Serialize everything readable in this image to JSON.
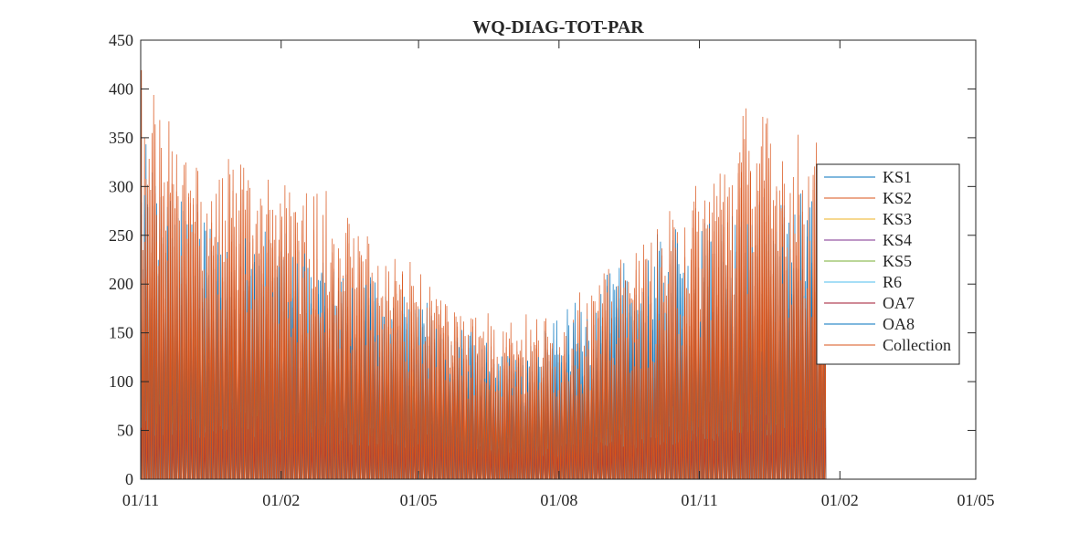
{
  "chart_data": {
    "type": "line",
    "title": "WQ-DIAG-TOT-PAR",
    "xlabel": "",
    "ylabel": "",
    "xlim": [
      "2011-11-01",
      "2013-05-01"
    ],
    "ylim": [
      0,
      450
    ],
    "x_ticks": [
      "01/11",
      "01/02",
      "01/05",
      "01/08",
      "01/11",
      "01/02",
      "01/05"
    ],
    "x_tick_dates": [
      "2011-11-01",
      "2012-02-01",
      "2012-05-01",
      "2012-08-01",
      "2012-11-01",
      "2013-02-01",
      "2013-05-01"
    ],
    "y_ticks": [
      0,
      50,
      100,
      150,
      200,
      250,
      300,
      350,
      400,
      450
    ],
    "grid": false,
    "legend_position": "right",
    "series": [
      {
        "name": "KS1",
        "color": "#0072BD",
        "data_end": "2013-01-22",
        "envelope": [
          [
            "2011-11-01",
            350
          ],
          [
            "2011-12-01",
            290
          ],
          [
            "2012-01-01",
            270
          ],
          [
            "2012-02-01",
            255
          ],
          [
            "2012-03-01",
            220
          ],
          [
            "2012-04-01",
            195
          ],
          [
            "2012-05-01",
            170
          ],
          [
            "2012-06-01",
            140
          ],
          [
            "2012-07-01",
            130
          ],
          [
            "2012-08-01",
            135
          ],
          [
            "2012-09-01",
            175
          ],
          [
            "2012-10-01",
            200
          ],
          [
            "2012-11-01",
            245
          ],
          [
            "2012-12-01",
            290
          ],
          [
            "2013-01-01",
            305
          ],
          [
            "2013-01-22",
            280
          ]
        ]
      },
      {
        "name": "KS2",
        "color": "#D95319",
        "data_end": "2013-01-22",
        "envelope": [
          [
            "2011-11-01",
            390
          ],
          [
            "2011-12-01",
            330
          ],
          [
            "2012-01-01",
            315
          ],
          [
            "2012-02-01",
            300
          ],
          [
            "2012-03-01",
            260
          ],
          [
            "2012-04-01",
            225
          ],
          [
            "2012-05-01",
            205
          ],
          [
            "2012-06-01",
            170
          ],
          [
            "2012-07-01",
            150
          ],
          [
            "2012-08-01",
            160
          ],
          [
            "2012-09-01",
            210
          ],
          [
            "2012-10-01",
            240
          ],
          [
            "2012-11-01",
            290
          ],
          [
            "2012-12-01",
            345
          ],
          [
            "2013-01-01",
            340
          ],
          [
            "2013-01-22",
            330
          ]
        ]
      },
      {
        "name": "KS3",
        "color": "#EDB120",
        "data_end": "2013-01-22",
        "envelope": [
          [
            "2011-11-01",
            180
          ],
          [
            "2012-02-01",
            150
          ],
          [
            "2012-05-01",
            110
          ],
          [
            "2012-08-01",
            90
          ],
          [
            "2012-11-01",
            150
          ],
          [
            "2013-01-22",
            170
          ]
        ]
      },
      {
        "name": "KS4",
        "color": "#7E2F8E",
        "data_end": "2013-01-22",
        "envelope": [
          [
            "2011-11-01",
            160
          ],
          [
            "2012-02-01",
            130
          ],
          [
            "2012-05-01",
            100
          ],
          [
            "2012-08-01",
            80
          ],
          [
            "2012-11-01",
            130
          ],
          [
            "2013-01-22",
            150
          ]
        ]
      },
      {
        "name": "KS5",
        "color": "#77AC30",
        "data_end": "2013-01-22",
        "envelope": [
          [
            "2011-11-01",
            140
          ],
          [
            "2012-02-01",
            115
          ],
          [
            "2012-05-01",
            90
          ],
          [
            "2012-08-01",
            70
          ],
          [
            "2012-11-01",
            115
          ],
          [
            "2013-01-22",
            130
          ]
        ]
      },
      {
        "name": "R6",
        "color": "#4DBEEE",
        "data_end": "2013-01-22",
        "envelope": [
          [
            "2011-11-01",
            120
          ],
          [
            "2012-02-01",
            100
          ],
          [
            "2012-05-01",
            80
          ],
          [
            "2012-08-01",
            60
          ],
          [
            "2012-11-01",
            100
          ],
          [
            "2013-01-22",
            110
          ]
        ]
      },
      {
        "name": "OA7",
        "color": "#A2142F",
        "data_end": "2013-01-22",
        "envelope": [
          [
            "2011-11-01",
            100
          ],
          [
            "2012-02-01",
            85
          ],
          [
            "2012-05-01",
            70
          ],
          [
            "2012-08-01",
            50
          ],
          [
            "2012-11-01",
            85
          ],
          [
            "2013-01-22",
            95
          ]
        ]
      },
      {
        "name": "OA8",
        "color": "#0072BD",
        "data_end": "2013-01-22",
        "envelope": [
          [
            "2011-11-01",
            300
          ],
          [
            "2011-12-01",
            270
          ],
          [
            "2012-02-01",
            240
          ],
          [
            "2012-05-01",
            190
          ],
          [
            "2012-07-01",
            125
          ],
          [
            "2012-09-01",
            210
          ],
          [
            "2012-10-01",
            250
          ],
          [
            "2012-12-01",
            280
          ],
          [
            "2013-01-22",
            250
          ]
        ]
      },
      {
        "name": "Collection",
        "color": "#D95319",
        "data_end": "2013-01-22",
        "envelope": [
          [
            "2011-11-01",
            420
          ],
          [
            "2011-12-01",
            340
          ],
          [
            "2012-01-01",
            330
          ],
          [
            "2012-02-01",
            310
          ],
          [
            "2012-03-01",
            300
          ],
          [
            "2012-04-01",
            245
          ],
          [
            "2012-05-01",
            225
          ],
          [
            "2012-06-01",
            180
          ],
          [
            "2012-07-01",
            170
          ],
          [
            "2012-08-01",
            175
          ],
          [
            "2012-09-01",
            215
          ],
          [
            "2012-10-01",
            255
          ],
          [
            "2012-11-01",
            315
          ],
          [
            "2012-12-01",
            395
          ],
          [
            "2013-01-01",
            360
          ],
          [
            "2013-01-22",
            350
          ]
        ]
      }
    ]
  }
}
